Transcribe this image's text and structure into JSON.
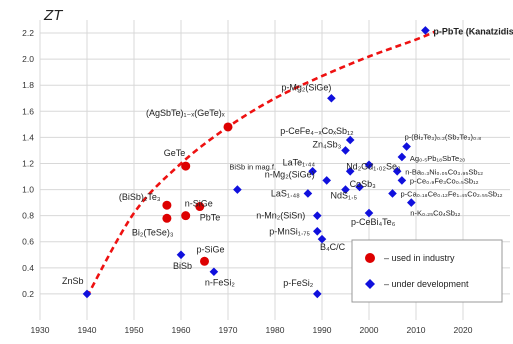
{
  "chart_data": {
    "type": "scatter",
    "title": "",
    "ylabel": "ZT",
    "xlabel": "",
    "xlim": [
      1930,
      2030
    ],
    "ylim": [
      0.0,
      2.3
    ],
    "x_ticks": [
      "1930",
      "1940",
      "1950",
      "1960",
      "1970",
      "1980",
      "1990",
      "2000",
      "2010",
      "2020"
    ],
    "y_ticks": [
      "0.2",
      "0.4",
      "0.6",
      "0.8",
      "1.0",
      "1.2",
      "1.4",
      "1.6",
      "1.8",
      "2.0",
      "2.2"
    ],
    "grid": true,
    "legend_position": "bottom-right",
    "legend": [
      {
        "label": "– used in industry",
        "marker": "circle",
        "color": "#dd0000"
      },
      {
        "label": "– under development",
        "marker": "diamond",
        "color": "#1010dd"
      }
    ],
    "series": [
      {
        "name": "used in industry",
        "marker": "circle",
        "color": "#dd0000",
        "points": [
          {
            "x": 1957,
            "y": 0.78,
            "label": "Bi₂(TeSe)₃"
          },
          {
            "x": 1957,
            "y": 0.88,
            "label": "(BiSb)₂Te₃"
          },
          {
            "x": 1961,
            "y": 0.8,
            "label": "n-SiGe"
          },
          {
            "x": 1964,
            "y": 0.87,
            "label": "PbTe"
          },
          {
            "x": 1961,
            "y": 1.18,
            "label": "GeTe"
          },
          {
            "x": 1970,
            "y": 1.48,
            "label": "(AgSbTe)₁₋ₓ(GeTe)ₓ"
          },
          {
            "x": 1965,
            "y": 0.45,
            "label": "p-SiGe"
          }
        ]
      },
      {
        "name": "under development",
        "marker": "diamond",
        "color": "#1010dd",
        "points": [
          {
            "x": 1940,
            "y": 0.2,
            "label": "ZnSb"
          },
          {
            "x": 1960,
            "y": 0.5,
            "label": "BiSb"
          },
          {
            "x": 1967,
            "y": 0.37,
            "label": "n-FeSi₂"
          },
          {
            "x": 1972,
            "y": 1.0,
            "label": "BiSb in mag.f."
          },
          {
            "x": 1989,
            "y": 0.2,
            "label": "p-FeSi₂"
          },
          {
            "x": 1992,
            "y": 1.7,
            "label": "p-Mg₂(SiGe)"
          },
          {
            "x": 1988,
            "y": 1.14,
            "label": "LaTe₁.₄₄"
          },
          {
            "x": 1987,
            "y": 0.97,
            "label": "LaS₁.₄₈"
          },
          {
            "x": 1989,
            "y": 0.8,
            "label": "n-Mn₂(SiSn)"
          },
          {
            "x": 1989,
            "y": 0.68,
            "label": "p-MnSi₁.₇₅"
          },
          {
            "x": 1990,
            "y": 0.62,
            "label": "B₄C/C"
          },
          {
            "x": 1991,
            "y": 1.07,
            "label": "n-Mg₂(SiGe)"
          },
          {
            "x": 1995,
            "y": 1.0,
            "label": "NdS₁.₅"
          },
          {
            "x": 1996,
            "y": 1.14,
            "label": "Nd₂Gd₁.₀₂Se₃"
          },
          {
            "x": 1998,
            "y": 1.02,
            "label": "CoSb₃"
          },
          {
            "x": 1995,
            "y": 1.3,
            "label": "Zn₄Sb₃"
          },
          {
            "x": 1996,
            "y": 1.38,
            "label": "p-CeFe₄₋ₓCoₓSb₁₂"
          },
          {
            "x": 2000,
            "y": 0.82,
            "label": "p-CeBi₄Te₆"
          },
          {
            "x": 2000,
            "y": 1.19,
            "label": ""
          },
          {
            "x": 2006,
            "y": 1.14,
            "label": "n-Ba₀.₃Ni₀.₀₅Co₃.₉₅Sb₁₂"
          },
          {
            "x": 2007,
            "y": 1.25,
            "label": "Ag₀.₅Pb₁₈SbTe₂₀"
          },
          {
            "x": 2007,
            "y": 1.07,
            "label": "p-Ce₀.₉Fe₃Co₀.₅Sb₁₂"
          },
          {
            "x": 2008,
            "y": 1.33,
            "label": "p-(Bi₂Te₃)₀.₂(Sb₂Te₃)₀.₈"
          },
          {
            "x": 2005,
            "y": 0.97,
            "label": "p-Ca₀.₁₈Ce₀.₁₂Fe₁.₄₅Co₂.₅₅Sb₁₂"
          },
          {
            "x": 2009,
            "y": 0.9,
            "label": "n-K₀.₂₅Co₄Sb₁₂"
          },
          {
            "x": 2012,
            "y": 2.22,
            "label": "p-PbTe (Kanatzidis)"
          }
        ]
      }
    ],
    "trend_line": {
      "style": "dashed",
      "color": "#ee1111",
      "x": [
        1940,
        1950,
        1960,
        1970,
        1980,
        1990,
        2000,
        2010,
        2014
      ],
      "y": [
        0.18,
        0.82,
        1.2,
        1.48,
        1.7,
        1.87,
        2.02,
        2.15,
        2.21
      ]
    }
  }
}
